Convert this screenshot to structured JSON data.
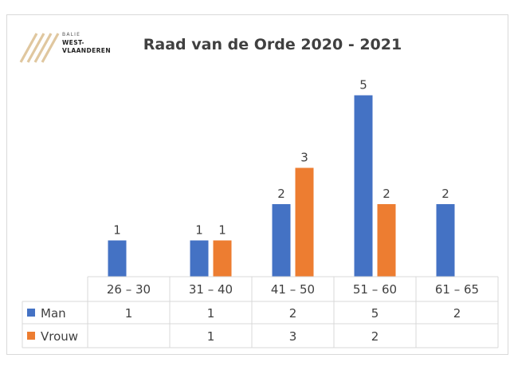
{
  "logo": {
    "line1": "BALIE",
    "line2": "WEST-",
    "line3": "VLAANDEREN",
    "stripe_color": "#e0c79f"
  },
  "chart_data": {
    "type": "bar",
    "title": "Raad van de Orde 2020 - 2021",
    "xlabel": "",
    "ylabel": "",
    "categories": [
      "26 – 30",
      "31 – 40",
      "41 – 50",
      "51 – 60",
      "61 – 65"
    ],
    "series": [
      {
        "name": "Man",
        "values": [
          1,
          1,
          2,
          5,
          2
        ],
        "color": "#4472c4"
      },
      {
        "name": "Vrouw",
        "values": [
          null,
          1,
          3,
          2,
          null
        ],
        "color": "#ed7d31"
      }
    ],
    "ylim": [
      0,
      5
    ],
    "grid": false,
    "legend": "data-table"
  }
}
